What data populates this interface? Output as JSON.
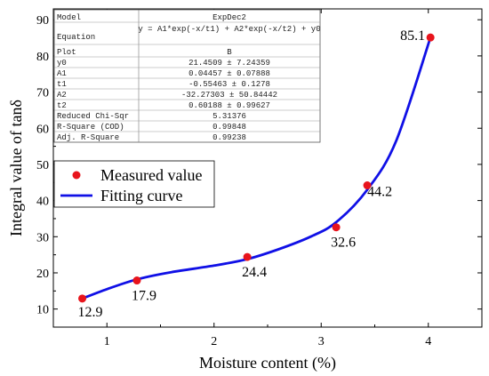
{
  "chart_data": {
    "type": "scatter",
    "xlabel": "Moisture content (%)",
    "ylabel": "Integral value of tanδ",
    "xlim": [
      0.5,
      4.5
    ],
    "ylim": [
      5,
      93
    ],
    "x_ticks": [
      1,
      2,
      3,
      4
    ],
    "y_ticks": [
      10,
      20,
      30,
      40,
      50,
      60,
      70,
      80,
      90
    ],
    "grid": false,
    "legend_position": "middle-left",
    "series": [
      {
        "name": "Measured value",
        "kind": "points",
        "color": "#e8141c",
        "x": [
          0.77,
          1.28,
          2.31,
          3.14,
          3.43,
          4.02
        ],
        "y": [
          12.9,
          17.9,
          24.4,
          32.6,
          44.2,
          85.1
        ],
        "labels": [
          "12.9",
          "17.9",
          "24.4",
          "32.6",
          "44.2",
          "85.1"
        ]
      },
      {
        "name": "Fitting curve",
        "kind": "line",
        "color": "#1010e6",
        "x": [
          0.77,
          1.0,
          1.28,
          1.6,
          2.0,
          2.31,
          2.6,
          2.9,
          3.14,
          3.43,
          3.7,
          4.02
        ],
        "y": [
          12.9,
          15.5,
          18.2,
          20.2,
          22.0,
          23.8,
          26.5,
          30.0,
          34.0,
          43.0,
          56.5,
          85.1
        ]
      }
    ],
    "fit_table": {
      "rows": [
        [
          "Model",
          "ExpDec2"
        ],
        [
          "Equation",
          "y = A1*exp(-x/t1) + A2*exp(-x/t2) + y0"
        ],
        [
          "Plot",
          "B"
        ],
        [
          "y0",
          "21.4509 ± 7.24359"
        ],
        [
          "A1",
          "0.04457 ± 0.07888"
        ],
        [
          "t1",
          "-0.55463 ± 0.1278"
        ],
        [
          "A2",
          "-32.27303 ± 50.84442"
        ],
        [
          "t2",
          "0.60188 ± 0.99627"
        ],
        [
          "Reduced Chi-Sqr",
          "5.31376"
        ],
        [
          "R-Square (COD)",
          "0.99848"
        ],
        [
          "Adj. R-Square",
          "0.99238"
        ]
      ]
    }
  }
}
